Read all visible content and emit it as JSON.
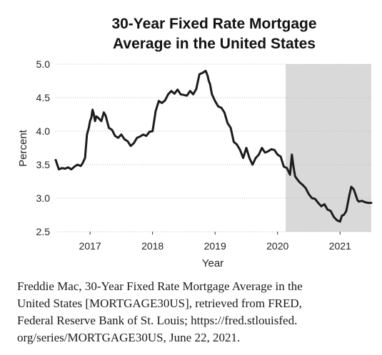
{
  "chart_data": {
    "type": "line",
    "title_lines": [
      "30-Year Fixed Rate Mortgage",
      "Average in the United States"
    ],
    "xlabel": "Year",
    "ylabel": "Percent",
    "xlim": [
      2016.45,
      2021.5
    ],
    "ylim": [
      2.5,
      5.0
    ],
    "y_ticks": [
      "2.5",
      "3.0",
      "3.5",
      "4.0",
      "4.5",
      "5.0"
    ],
    "x_ticks": [
      "2017",
      "2018",
      "2019",
      "2020",
      "2021"
    ],
    "grid": "horizontal",
    "shaded_region": [
      2020.13,
      2021.5
    ],
    "series": [
      {
        "x": [
          2016.45,
          2016.5,
          2016.55,
          2016.6,
          2016.65,
          2016.7,
          2016.75,
          2016.8,
          2016.85,
          2016.88,
          2016.92,
          2016.95,
          2016.98,
          2017.0,
          2017.02,
          2017.04,
          2017.06,
          2017.08,
          2017.1,
          2017.12,
          2017.15,
          2017.18,
          2017.22,
          2017.25,
          2017.3,
          2017.35,
          2017.4,
          2017.45,
          2017.5,
          2017.55,
          2017.6,
          2017.65,
          2017.7,
          2017.75,
          2017.8,
          2017.85,
          2017.9,
          2017.95,
          2018.0,
          2018.05,
          2018.1,
          2018.15,
          2018.2,
          2018.25,
          2018.3,
          2018.35,
          2018.4,
          2018.45,
          2018.5,
          2018.55,
          2018.6,
          2018.65,
          2018.7,
          2018.75,
          2018.8,
          2018.85,
          2018.88,
          2018.9,
          2018.92,
          2018.95,
          2019.0,
          2019.05,
          2019.1,
          2019.15,
          2019.2,
          2019.25,
          2019.3,
          2019.35,
          2019.4,
          2019.45,
          2019.5,
          2019.55,
          2019.6,
          2019.65,
          2019.7,
          2019.75,
          2019.8,
          2019.85,
          2019.9,
          2019.95,
          2020.0,
          2020.05,
          2020.1,
          2020.15,
          2020.2,
          2020.23,
          2020.25,
          2020.28,
          2020.3,
          2020.35,
          2020.4,
          2020.45,
          2020.5,
          2020.55,
          2020.6,
          2020.65,
          2020.7,
          2020.75,
          2020.8,
          2020.85,
          2020.9,
          2020.95,
          2021.0,
          2021.03,
          2021.06,
          2021.1,
          2021.15,
          2021.18,
          2021.22,
          2021.25,
          2021.28,
          2021.3,
          2021.35,
          2021.4,
          2021.45,
          2021.5
        ],
        "y": [
          3.57,
          3.43,
          3.45,
          3.44,
          3.46,
          3.43,
          3.47,
          3.5,
          3.48,
          3.52,
          3.6,
          3.95,
          4.05,
          4.15,
          4.2,
          4.32,
          4.25,
          4.15,
          4.22,
          4.21,
          4.18,
          4.15,
          4.28,
          4.23,
          4.05,
          4.02,
          3.93,
          3.9,
          3.95,
          3.88,
          3.85,
          3.78,
          3.82,
          3.9,
          3.92,
          3.95,
          3.93,
          3.99,
          4.0,
          4.3,
          4.45,
          4.42,
          4.46,
          4.55,
          4.6,
          4.56,
          4.62,
          4.55,
          4.54,
          4.53,
          4.6,
          4.55,
          4.63,
          4.85,
          4.87,
          4.9,
          4.83,
          4.75,
          4.7,
          4.55,
          4.45,
          4.37,
          4.35,
          4.28,
          4.12,
          4.05,
          3.84,
          3.8,
          3.72,
          3.6,
          3.75,
          3.6,
          3.5,
          3.6,
          3.65,
          3.75,
          3.68,
          3.7,
          3.73,
          3.72,
          3.65,
          3.62,
          3.47,
          3.45,
          3.35,
          3.65,
          3.5,
          3.33,
          3.3,
          3.24,
          3.2,
          3.15,
          3.06,
          3.0,
          2.99,
          2.93,
          2.88,
          2.91,
          2.83,
          2.81,
          2.72,
          2.67,
          2.65,
          2.74,
          2.75,
          2.81,
          3.05,
          3.17,
          3.13,
          3.05,
          2.97,
          2.95,
          2.96,
          2.94,
          2.93,
          2.93
        ]
      }
    ]
  },
  "caption_lines": [
    "Freddie Mac, 30-Year Fixed Rate Mortgage Average in the",
    "United States [MORTGAGE30US], retrieved from FRED,",
    "Federal Reserve Bank of St. Louis; https://fred.stlouisfed.",
    "org/series/MORTGAGE30US, June 22, 2021."
  ],
  "colors": {
    "line": "#1c1c1c",
    "shade": "#d9d9d9",
    "grid": "#bdbdbd"
  }
}
